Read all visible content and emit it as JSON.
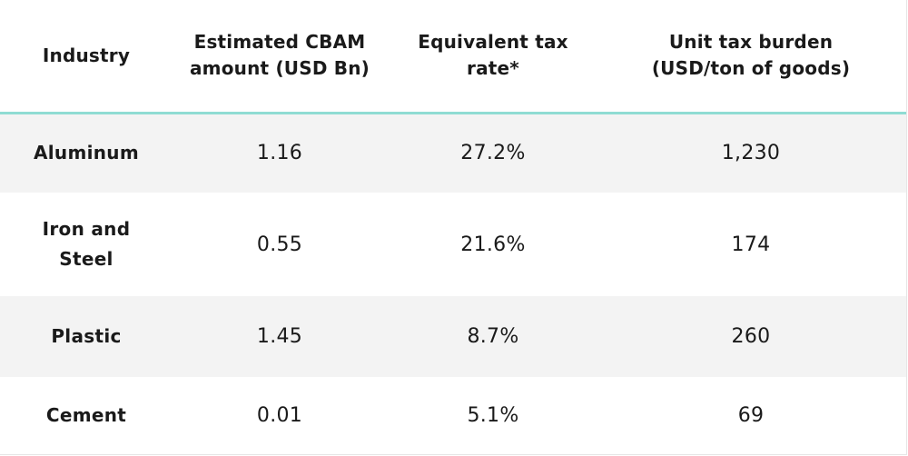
{
  "table": {
    "headers": [
      "Industry",
      "Estimated CBAM amount (USD Bn)",
      "Equivalent tax rate*",
      "Unit tax burden (USD/ton of goods)"
    ],
    "header_lines": [
      [
        "Industry"
      ],
      [
        "Estimated CBAM",
        "amount (USD Bn)"
      ],
      [
        "Equivalent tax",
        "rate*"
      ],
      [
        "Unit tax burden",
        "(USD/ton of goods)"
      ]
    ],
    "rows": [
      {
        "industry_lines": [
          "Aluminum"
        ],
        "cbam_amount": "1.16",
        "tax_rate": "27.2%",
        "unit_burden": "1,230"
      },
      {
        "industry_lines": [
          "Iron and",
          "Steel"
        ],
        "cbam_amount": "0.55",
        "tax_rate": "21.6%",
        "unit_burden": "174"
      },
      {
        "industry_lines": [
          "Plastic"
        ],
        "cbam_amount": "1.45",
        "tax_rate": "8.7%",
        "unit_burden": "260"
      },
      {
        "industry_lines": [
          "Cement"
        ],
        "cbam_amount": "0.01",
        "tax_rate": "5.1%",
        "unit_burden": "69"
      }
    ]
  },
  "colors": {
    "header_rule": "#8fdcd3",
    "row_shade": "#f3f3f3",
    "text": "#1a1a1a"
  }
}
